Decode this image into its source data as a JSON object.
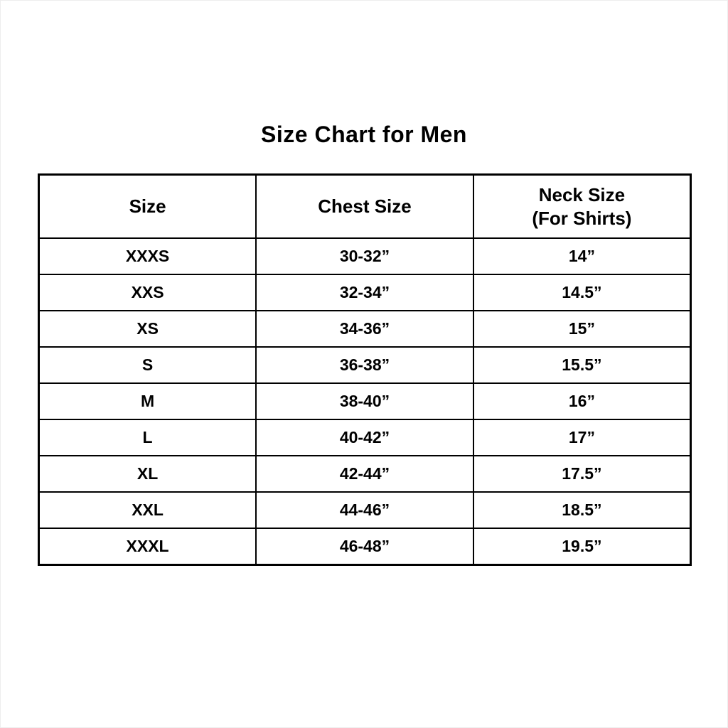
{
  "title": "Size Chart for Men",
  "table": {
    "headers": [
      {
        "label": "Size"
      },
      {
        "label": "Chest Size"
      },
      {
        "label": "Neck Size",
        "sublabel": "(For Shirts)"
      }
    ],
    "rows": [
      {
        "size": "XXXS",
        "chest": "30-32”",
        "neck": "14”"
      },
      {
        "size": "XXS",
        "chest": "32-34”",
        "neck": "14.5”"
      },
      {
        "size": "XS",
        "chest": "34-36”",
        "neck": "15”"
      },
      {
        "size": "S",
        "chest": "36-38”",
        "neck": "15.5”"
      },
      {
        "size": "M",
        "chest": "38-40”",
        "neck": "16”"
      },
      {
        "size": "L",
        "chest": "40-42”",
        "neck": "17”"
      },
      {
        "size": "XL",
        "chest": "42-44”",
        "neck": "17.5”"
      },
      {
        "size": "XXL",
        "chest": "44-46”",
        "neck": "18.5”"
      },
      {
        "size": "XXXL",
        "chest": "46-48”",
        "neck": "19.5”"
      }
    ]
  },
  "chart_data": {
    "type": "table",
    "title": "Size Chart for Men",
    "columns": [
      "Size",
      "Chest Size",
      "Neck Size (For Shirts)"
    ],
    "rows": [
      [
        "XXXS",
        "30-32”",
        "14”"
      ],
      [
        "XXS",
        "32-34”",
        "14.5”"
      ],
      [
        "XS",
        "34-36”",
        "15”"
      ],
      [
        "S",
        "36-38”",
        "15.5”"
      ],
      [
        "M",
        "38-40”",
        "16”"
      ],
      [
        "L",
        "40-42”",
        "17”"
      ],
      [
        "XL",
        "42-44”",
        "17.5”"
      ],
      [
        "XXL",
        "44-46”",
        "18.5”"
      ],
      [
        "XXXL",
        "46-48”",
        "19.5”"
      ]
    ]
  }
}
